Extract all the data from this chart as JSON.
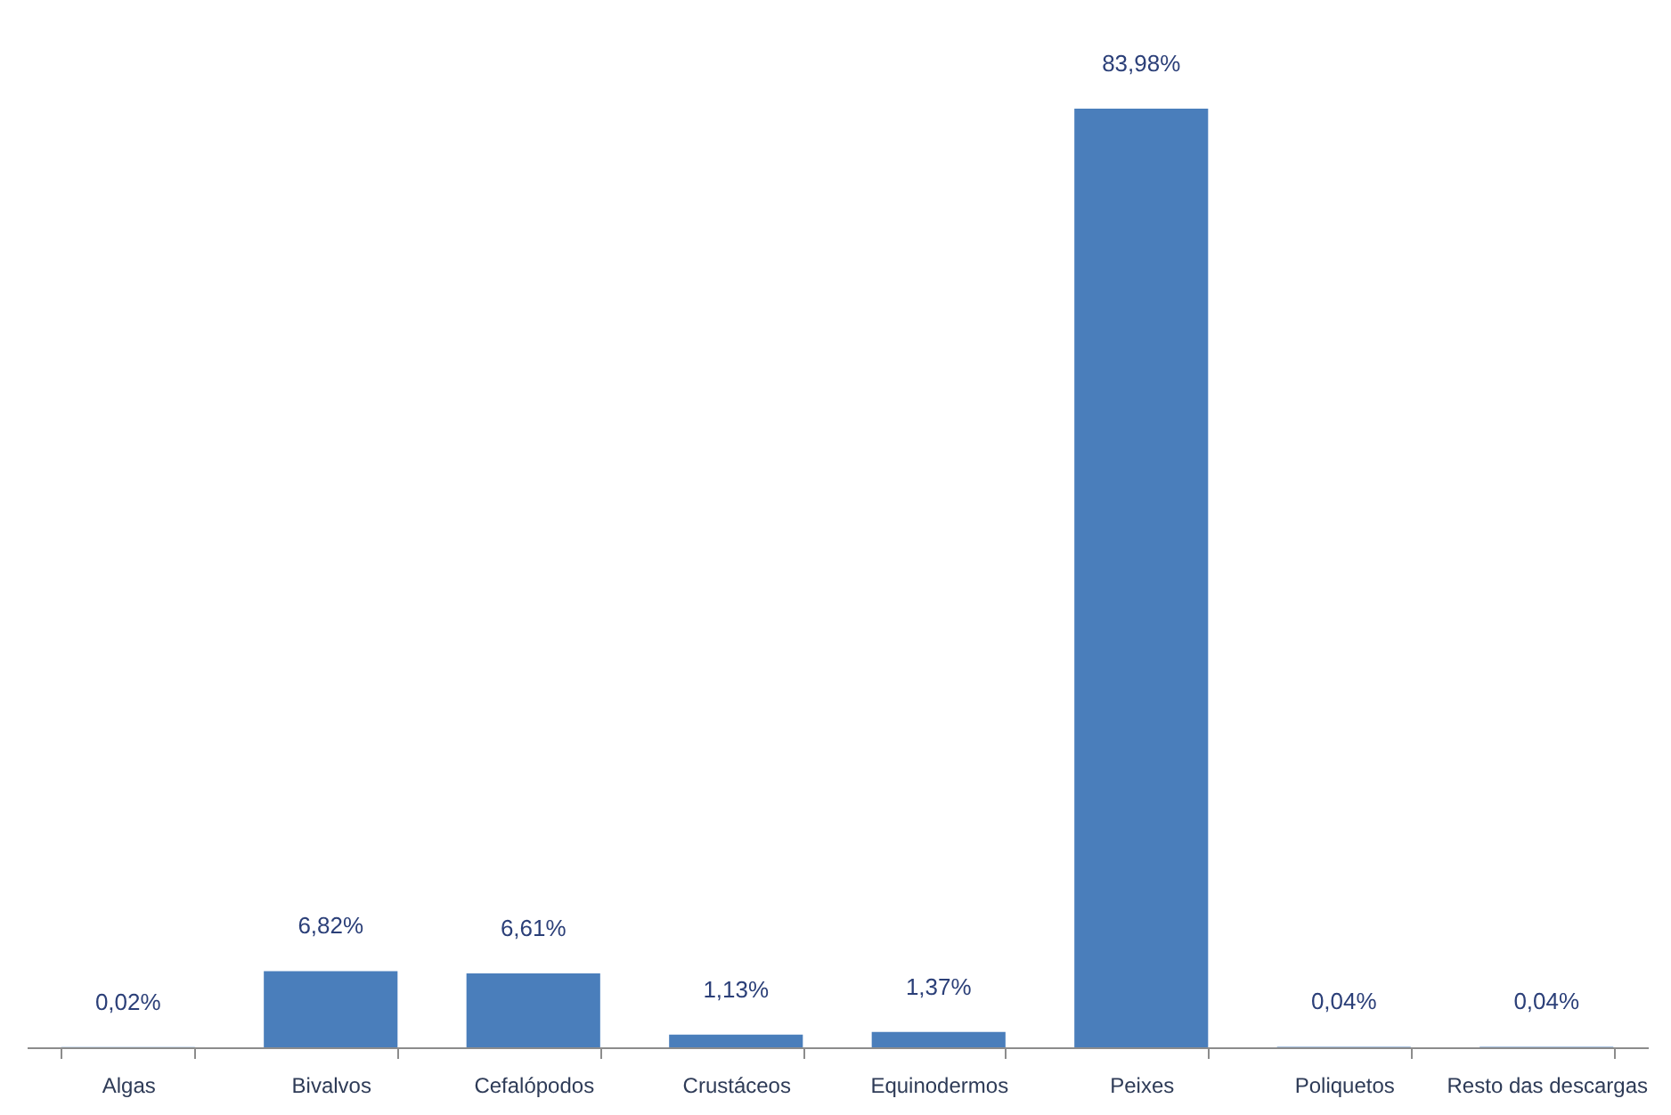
{
  "chart_data": {
    "type": "bar",
    "categories": [
      "Algas",
      "Bivalvos",
      "Cefalópodos",
      "Crustáceos",
      "Equinodermos",
      "Peixes",
      "Poliquetos",
      "Resto das descargas"
    ],
    "values": [
      0.02,
      6.82,
      6.61,
      1.13,
      1.37,
      83.98,
      0.04,
      0.04
    ],
    "value_labels": [
      "0,02%",
      "6,82%",
      "6,61%",
      "1,13%",
      "1,37%",
      "83,98%",
      "0,04%",
      "0,04%"
    ],
    "color": "#4a7ebb",
    "tick_labels": "x"
  }
}
